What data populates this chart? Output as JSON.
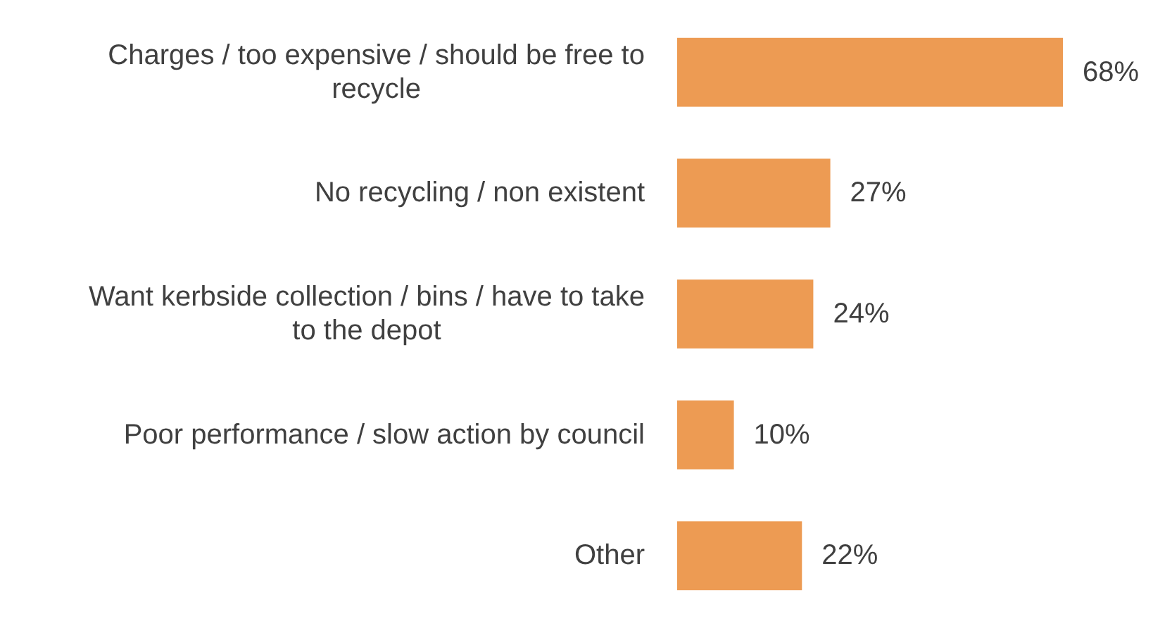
{
  "chart_data": {
    "type": "bar",
    "orientation": "horizontal",
    "categories": [
      "Charges / too expensive / should be free to recycle",
      "No recycling / non existent",
      "Want kerbside collection / bins / have to take to the depot",
      "Poor performance / slow action by council",
      "Other"
    ],
    "values": [
      68,
      27,
      24,
      10,
      22
    ],
    "color": "#ed9b53",
    "value_labels": [
      "68%",
      "27%",
      "24%",
      "10%",
      "22%"
    ]
  }
}
